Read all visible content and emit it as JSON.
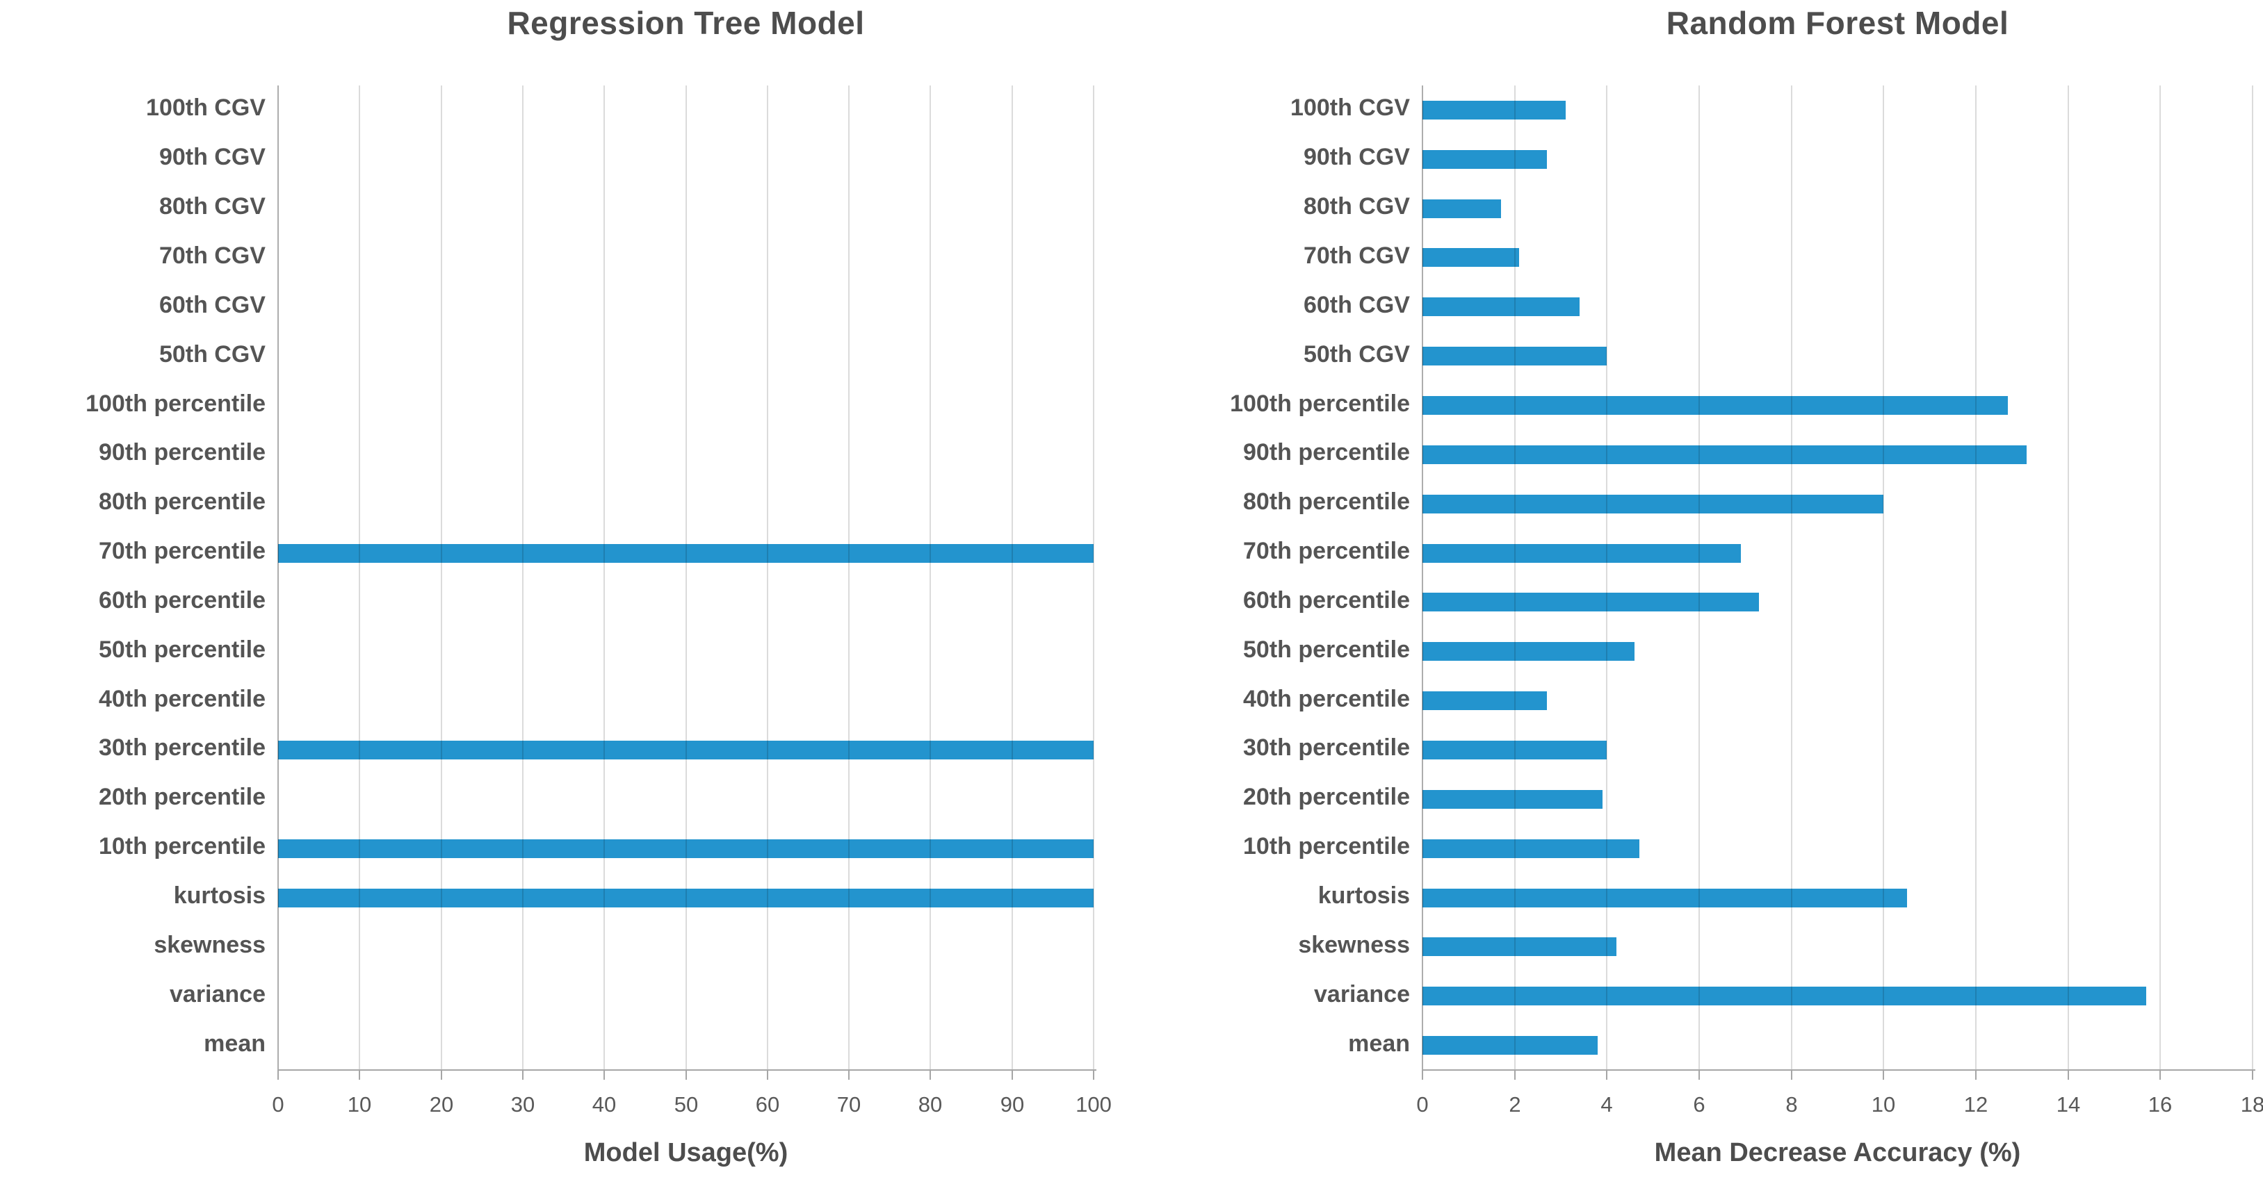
{
  "chart_data": [
    {
      "type": "bar",
      "orientation": "horizontal",
      "title": "Regression Tree Model",
      "xlabel": "Model Usage(%)",
      "xlim": [
        0,
        100
      ],
      "xticks": [
        0,
        10,
        20,
        30,
        40,
        50,
        60,
        70,
        80,
        90,
        100
      ],
      "grid": true,
      "legend": false,
      "categories": [
        "100th CGV",
        "90th CGV",
        "80th CGV",
        "70th CGV",
        "60th CGV",
        "50th CGV",
        "100th percentile",
        "90th percentile",
        "80th percentile",
        "70th percentile",
        "60th percentile",
        "50th percentile",
        "40th percentile",
        "30th percentile",
        "20th percentile",
        "10th percentile",
        "kurtosis",
        "skewness",
        "variance",
        "mean"
      ],
      "values": [
        0,
        0,
        0,
        0,
        0,
        0,
        0,
        0,
        0,
        100,
        0,
        0,
        0,
        100,
        0,
        100,
        100,
        0,
        0,
        0
      ]
    },
    {
      "type": "bar",
      "orientation": "horizontal",
      "title": "Random Forest Model",
      "xlabel": "Mean Decrease Accuracy (%)",
      "xlim": [
        0,
        18
      ],
      "xticks": [
        0,
        2,
        4,
        6,
        8,
        10,
        12,
        14,
        16,
        18
      ],
      "grid": true,
      "legend": false,
      "categories": [
        "100th CGV",
        "90th CGV",
        "80th CGV",
        "70th CGV",
        "60th CGV",
        "50th CGV",
        "100th percentile",
        "90th percentile",
        "80th percentile",
        "70th percentile",
        "60th percentile",
        "50th percentile",
        "40th percentile",
        "30th percentile",
        "20th percentile",
        "10th percentile",
        "kurtosis",
        "skewness",
        "variance",
        "mean"
      ],
      "values": [
        3.1,
        2.7,
        1.7,
        2.1,
        3.4,
        4.0,
        12.7,
        13.1,
        10.0,
        6.9,
        7.3,
        4.6,
        2.7,
        4.0,
        3.9,
        4.7,
        10.5,
        4.2,
        15.7,
        3.8
      ]
    }
  ],
  "colors": {
    "bar": "#2394ce",
    "gridline": "#d9d9d9",
    "axis_line": "#a6a6a6",
    "text": "#595959",
    "title": "#4d4d4d"
  }
}
